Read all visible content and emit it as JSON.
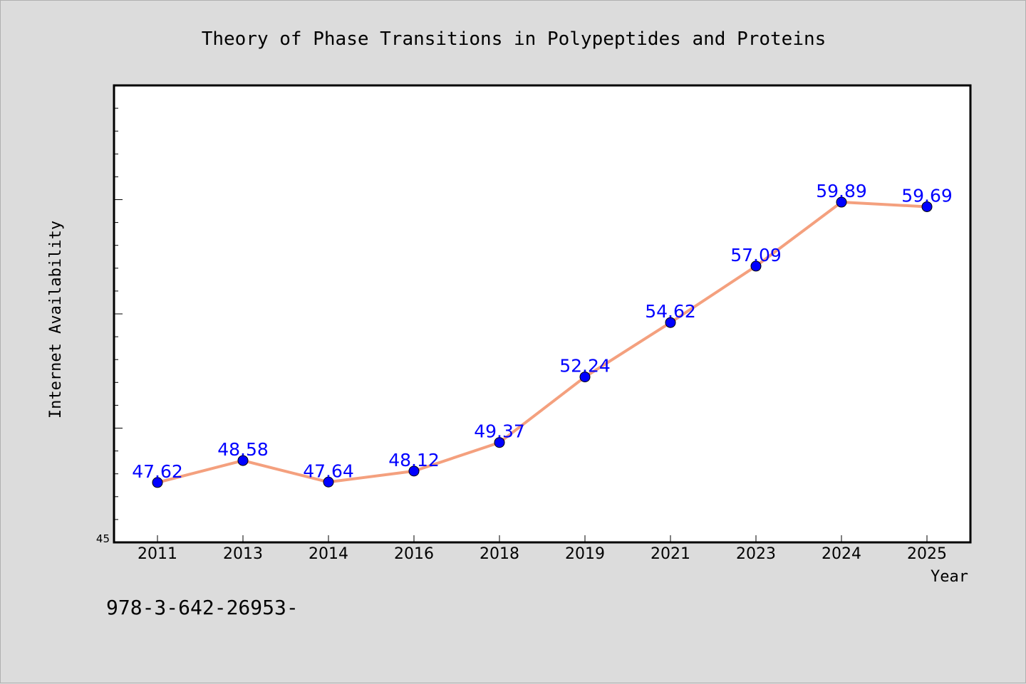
{
  "chart_data": {
    "type": "line",
    "title": "Theory of Phase Transitions in Polypeptides and Proteins",
    "xlabel": "Year",
    "ylabel": "Internet Availability",
    "categories": [
      "2011",
      "2013",
      "2014",
      "2016",
      "2018",
      "2019",
      "2021",
      "2023",
      "2024",
      "2025"
    ],
    "values": [
      47.62,
      48.58,
      47.64,
      48.12,
      49.37,
      52.24,
      54.62,
      57.09,
      59.89,
      59.69
    ],
    "data_labels": [
      "47.62",
      "48.58",
      "47.64",
      "48.12",
      "49.37",
      "52.24",
      "54.62",
      "57.09",
      "59.89",
      "59.69"
    ],
    "ylim": [
      45,
      65
    ],
    "ytick_labels": [
      {
        "value": 45,
        "label": "45"
      }
    ],
    "grid": false,
    "legend": "none",
    "line_color": "#f4a07e",
    "marker_color": "#0000ff",
    "label_color": "#0000ff",
    "plot_background": "#ffffff",
    "figure_background": "#dcdcdc"
  },
  "footer_text": "978-3-642-26953-"
}
